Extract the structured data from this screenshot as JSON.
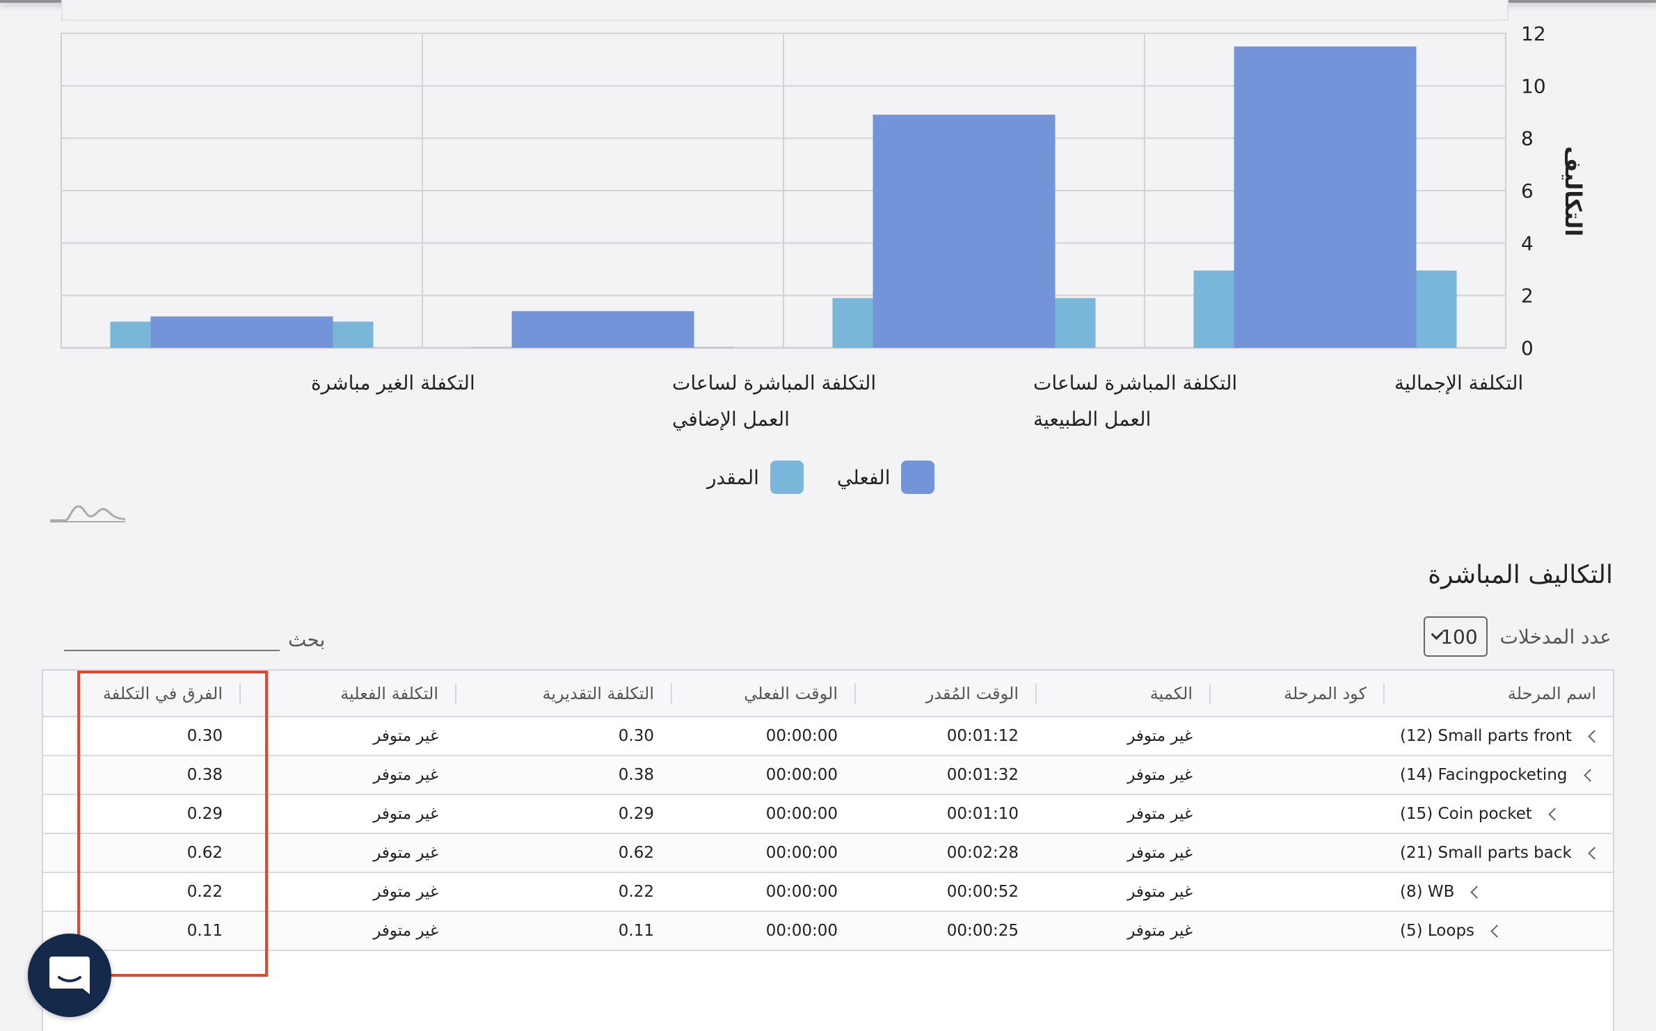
{
  "chart_data": {
    "type": "bar",
    "categories": [
      [
        "التكلفة الإجمالية"
      ],
      [
        "التكلفة المباشرة لساعات",
        "العمل الطبيعية"
      ],
      [
        "التكلفة المباشرة لساعات",
        "العمل الإضافي"
      ],
      [
        "التكفلة الغير مباشرة"
      ]
    ],
    "series": [
      {
        "name": "المقدر",
        "color": "#79b6d9",
        "values": [
          2.95,
          1.9,
          0.02,
          1.0
        ]
      },
      {
        "name": "الفعلي",
        "color": "#7394d8",
        "values": [
          11.5,
          8.9,
          1.4,
          1.2
        ]
      }
    ],
    "ylabel": "التكاليف",
    "ylim": [
      0,
      12
    ],
    "yticks": [
      0,
      2,
      4,
      6,
      8,
      10,
      12
    ],
    "grid": true,
    "legend_position": "bottom-center"
  },
  "section": {
    "title": "التكاليف المباشرة",
    "entries_label": "عدد المدخلات",
    "entries_value": "100",
    "search_label": "بحث",
    "search_value": ""
  },
  "table": {
    "headers": [
      "اسم المرحلة",
      "كود المرحلة",
      "الكمية",
      "الوقت المُقدر",
      "الوقت الفعلي",
      "التكلفة التقديرية",
      "التكلفة الفعلية",
      "الفرق في التكلفة"
    ],
    "rows": [
      {
        "name": "(12) Small parts front",
        "code": "",
        "qty": "غير متوفر",
        "est_time": "00:01:12",
        "act_time": "00:00:00",
        "est_cost": "0.30",
        "act_cost": "غير متوفر",
        "diff": "0.30"
      },
      {
        "name": "(14) Facingpocketing",
        "code": "",
        "qty": "غير متوفر",
        "est_time": "00:01:32",
        "act_time": "00:00:00",
        "est_cost": "0.38",
        "act_cost": "غير متوفر",
        "diff": "0.38"
      },
      {
        "name": "(15) Coin pocket",
        "code": "",
        "qty": "غير متوفر",
        "est_time": "00:01:10",
        "act_time": "00:00:00",
        "est_cost": "0.29",
        "act_cost": "غير متوفر",
        "diff": "0.29"
      },
      {
        "name": "(21) Small parts back",
        "code": "",
        "qty": "غير متوفر",
        "est_time": "00:02:28",
        "act_time": "00:00:00",
        "est_cost": "0.62",
        "act_cost": "غير متوفر",
        "diff": "0.62"
      },
      {
        "name": "(8) WB",
        "code": "",
        "qty": "غير متوفر",
        "est_time": "00:00:52",
        "act_time": "00:00:00",
        "est_cost": "0.22",
        "act_cost": "غير متوفر",
        "diff": "0.22"
      },
      {
        "name": "(5) Loops",
        "code": "",
        "qty": "غير متوفر",
        "est_time": "00:00:25",
        "act_time": "00:00:00",
        "est_cost": "0.11",
        "act_cost": "غير متوفر",
        "diff": "0.11"
      }
    ]
  },
  "icons": {
    "chat": "chat-bubble-icon",
    "watermark": "chart-logo-icon",
    "row_expand": "chevron-left-icon",
    "select": "chevron-down-icon"
  }
}
